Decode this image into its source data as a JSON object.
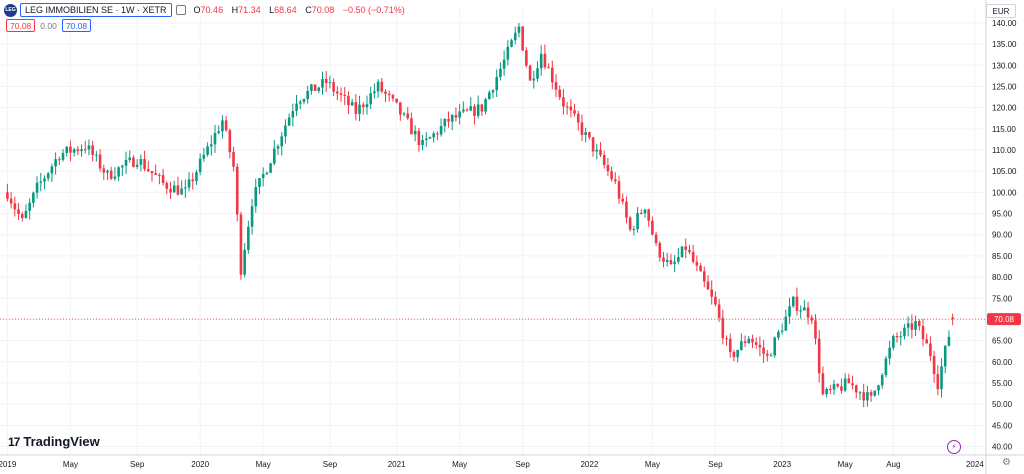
{
  "header": {
    "logo_text": "LEG",
    "symbol": "LEG IMMOBILIEN SE · 1W · XETR",
    "ohlc": [
      {
        "k": "O",
        "v": "70.46"
      },
      {
        "k": "H",
        "v": "71.34"
      },
      {
        "k": "L",
        "v": "68.64"
      },
      {
        "k": "C",
        "v": "70.08"
      }
    ],
    "change": "−0.50 (−0.71%)"
  },
  "quote": {
    "bid": "70.08",
    "spread": "0.00",
    "ask": "70.08"
  },
  "currency": "EUR",
  "brand": "TradingView",
  "colors": {
    "up": "#089981",
    "down": "#f23645",
    "grid": "#f0f3fa",
    "axis_text": "#131722"
  },
  "icons": [
    "eye-hide-icon",
    "tradingview-logo-icon",
    "flash-icon",
    "gear-icon"
  ],
  "chart_data": {
    "type": "candlestick",
    "title": "",
    "x_tick_labels": [
      "2019",
      "May",
      "Sep",
      "2020",
      "May",
      "Sep",
      "2021",
      "May",
      "Sep",
      "2022",
      "May",
      "Sep",
      "2023",
      "May",
      "Aug",
      "2024"
    ],
    "y_ticks": [
      40,
      45,
      50,
      55,
      60,
      65,
      70,
      75,
      80,
      85,
      90,
      95,
      100,
      105,
      110,
      115,
      120,
      125,
      130,
      135,
      140
    ],
    "ylim": [
      38,
      144
    ],
    "last_price": "70.08",
    "weekly_close_path": [
      {
        "date": "2019-01-04",
        "close": 100
      },
      {
        "date": "2019-02-01",
        "close": 93
      },
      {
        "date": "2019-03-01",
        "close": 101
      },
      {
        "date": "2019-04-12",
        "close": 109
      },
      {
        "date": "2019-06-01",
        "close": 111
      },
      {
        "date": "2019-07-12",
        "close": 104
      },
      {
        "date": "2019-09-06",
        "close": 108
      },
      {
        "date": "2019-10-25",
        "close": 102
      },
      {
        "date": "2019-12-06",
        "close": 100
      },
      {
        "date": "2020-02-14",
        "close": 117
      },
      {
        "date": "2020-03-06",
        "close": 106
      },
      {
        "date": "2020-03-20",
        "close": 82
      },
      {
        "date": "2020-04-10",
        "close": 98
      },
      {
        "date": "2020-05-22",
        "close": 110
      },
      {
        "date": "2020-07-03",
        "close": 122
      },
      {
        "date": "2020-08-28",
        "close": 126
      },
      {
        "date": "2020-10-23",
        "close": 119
      },
      {
        "date": "2020-12-04",
        "close": 125
      },
      {
        "date": "2021-01-08",
        "close": 120
      },
      {
        "date": "2021-02-26",
        "close": 111
      },
      {
        "date": "2021-04-16",
        "close": 117
      },
      {
        "date": "2021-06-18",
        "close": 120
      },
      {
        "date": "2021-07-30",
        "close": 131
      },
      {
        "date": "2021-08-27",
        "close": 139
      },
      {
        "date": "2021-09-17",
        "close": 126
      },
      {
        "date": "2021-10-08",
        "close": 133
      },
      {
        "date": "2021-11-19",
        "close": 121
      },
      {
        "date": "2022-01-07",
        "close": 112
      },
      {
        "date": "2022-02-25",
        "close": 102
      },
      {
        "date": "2022-03-25",
        "close": 91
      },
      {
        "date": "2022-04-22",
        "close": 97
      },
      {
        "date": "2022-05-13",
        "close": 87
      },
      {
        "date": "2022-06-10",
        "close": 82
      },
      {
        "date": "2022-07-08",
        "close": 87
      },
      {
        "date": "2022-08-05",
        "close": 80
      },
      {
        "date": "2022-09-02",
        "close": 73
      },
      {
        "date": "2022-09-30",
        "close": 61
      },
      {
        "date": "2022-11-04",
        "close": 66
      },
      {
        "date": "2022-12-09",
        "close": 61
      },
      {
        "date": "2023-01-27",
        "close": 74
      },
      {
        "date": "2023-03-03",
        "close": 71
      },
      {
        "date": "2023-03-24",
        "close": 52
      },
      {
        "date": "2023-05-12",
        "close": 55
      },
      {
        "date": "2023-06-23",
        "close": 51
      },
      {
        "date": "2023-08-04",
        "close": 65
      },
      {
        "date": "2023-09-15",
        "close": 69
      },
      {
        "date": "2023-10-13",
        "close": 62
      },
      {
        "date": "2023-10-27",
        "close": 55
      },
      {
        "date": "2023-11-24",
        "close": 70.08
      }
    ]
  }
}
